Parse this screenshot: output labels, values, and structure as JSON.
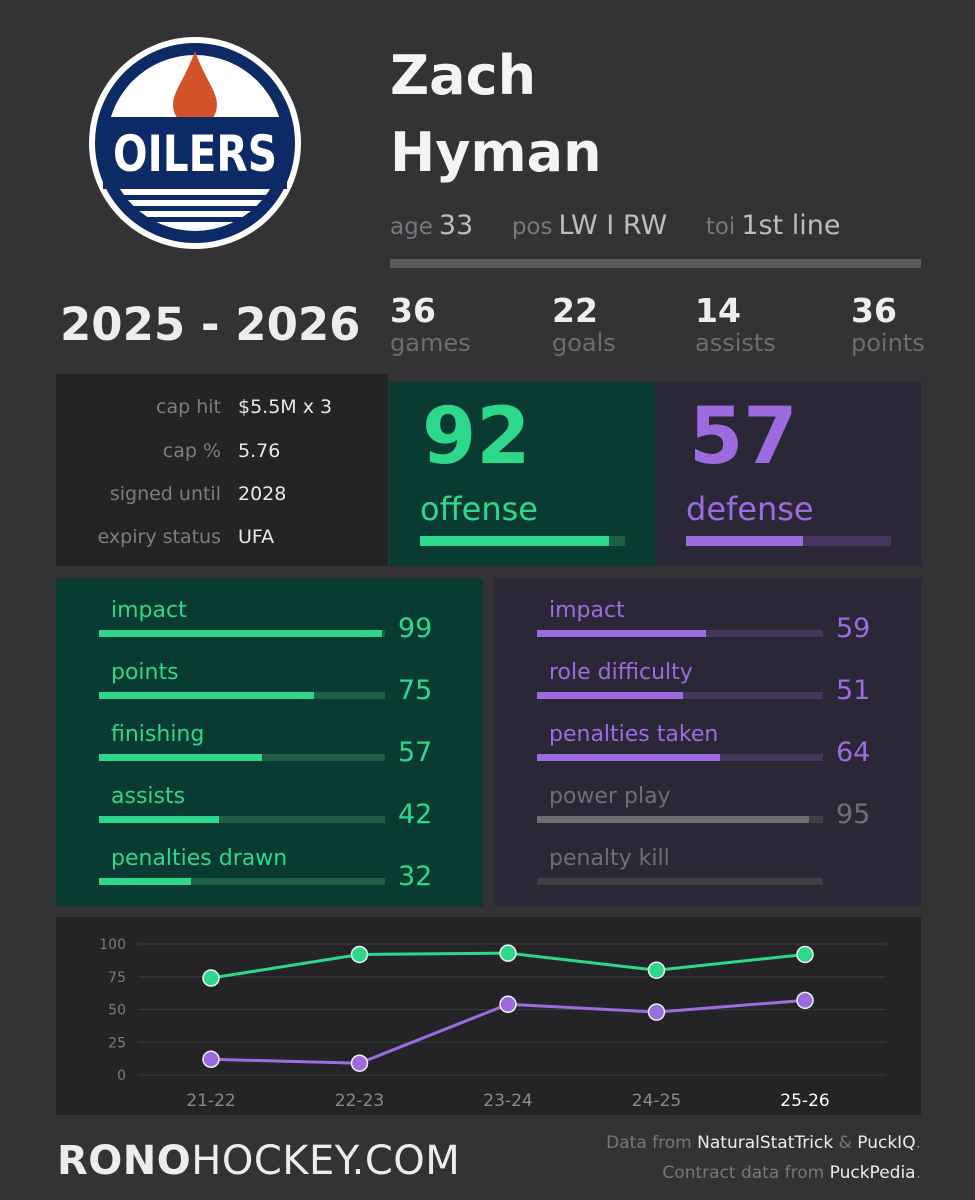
{
  "team": {
    "logo_text": "OILERS",
    "logo_icon": "oilers-logo"
  },
  "player": {
    "first_name": "Zach",
    "last_name": "Hyman",
    "age_label": "age",
    "age": "33",
    "pos_label": "pos",
    "pos": "LW I RW",
    "toi_label": "toi",
    "toi": "1st line"
  },
  "season": "2025 - 2026",
  "stats": [
    {
      "value": "36",
      "label": "games"
    },
    {
      "value": "22",
      "label": "goals"
    },
    {
      "value": "14",
      "label": "assists"
    },
    {
      "value": "36",
      "label": "points"
    }
  ],
  "contract": [
    {
      "key": "cap hit",
      "value": "$5.5M x 3"
    },
    {
      "key": "cap %",
      "value": "5.76"
    },
    {
      "key": "signed until",
      "value": "2028"
    },
    {
      "key": "expiry status",
      "value": "UFA"
    }
  ],
  "offense": {
    "value": "92",
    "label": "offense",
    "pct": 92
  },
  "defense": {
    "value": "57",
    "label": "defense",
    "pct": 57
  },
  "offense_metrics": [
    {
      "label": "impact",
      "value": "99",
      "pct": 99
    },
    {
      "label": "points",
      "value": "75",
      "pct": 75
    },
    {
      "label": "finishing",
      "value": "57",
      "pct": 57
    },
    {
      "label": "assists",
      "value": "42",
      "pct": 42
    },
    {
      "label": "penalties drawn",
      "value": "32",
      "pct": 32
    }
  ],
  "defense_metrics": [
    {
      "label": "impact",
      "value": "59",
      "pct": 59,
      "active": true
    },
    {
      "label": "role difficulty",
      "value": "51",
      "pct": 51,
      "active": true
    },
    {
      "label": "penalties taken",
      "value": "64",
      "pct": 64,
      "active": true
    },
    {
      "label": "power play",
      "value": "95",
      "pct": 95,
      "active": false
    },
    {
      "label": "penalty kill",
      "value": "",
      "pct": 0,
      "active": false
    }
  ],
  "colors": {
    "offense": "#2ed88a",
    "offense_track": "#1f5f46",
    "defense": "#9d6be0",
    "defense_track": "#46365e",
    "inactive": "#6f6f72",
    "inactive_track": "#3f3f44"
  },
  "chart_data": {
    "type": "line",
    "categories": [
      "21-22",
      "22-23",
      "23-24",
      "24-25",
      "25-26"
    ],
    "series": [
      {
        "values": [
          74,
          92,
          93,
          80,
          92
        ],
        "color": "#2ed88a"
      },
      {
        "values": [
          12,
          9,
          54,
          48,
          57
        ],
        "color": "#9d6be0"
      }
    ],
    "yticks": [
      "100",
      "75",
      "50",
      "25",
      "0"
    ],
    "ylim": [
      0,
      100
    ],
    "grid": true,
    "highlight_category": "25-26"
  },
  "footer": {
    "brand_bold": "RONO",
    "brand_rest": "HOCKEY.COM",
    "credit1_prefix": "Data from ",
    "credit1_src1": "NaturalStatTrick",
    "credit1_amp": " & ",
    "credit1_src2": "PuckIQ",
    "credit1_end": ".",
    "credit2_prefix": "Contract data from ",
    "credit2_src": "PuckPedia",
    "credit2_end": "."
  }
}
